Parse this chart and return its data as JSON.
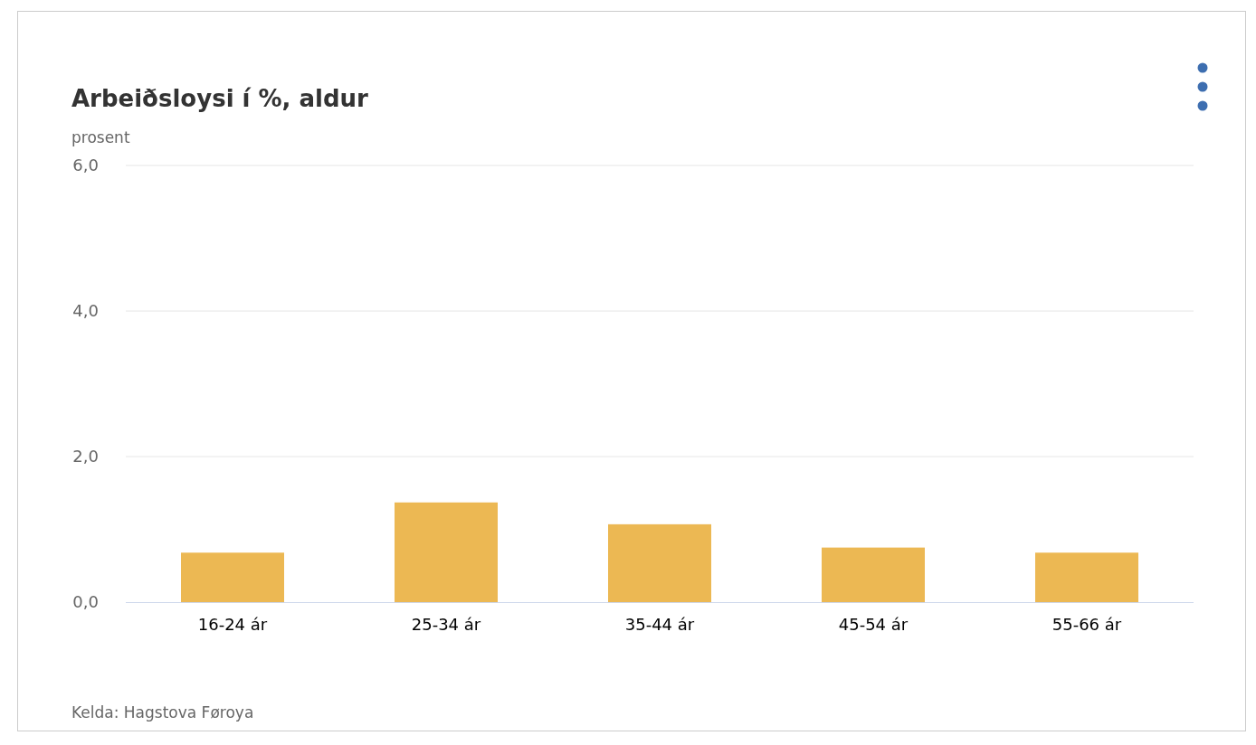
{
  "chart_data": {
    "type": "bar",
    "title": "Arbeiðsloysi í %, aldur",
    "ylabel": "prosent",
    "categories": [
      "16-24 ár",
      "25-34 ár",
      "35-44 ár",
      "45-54 ár",
      "55-66 ár"
    ],
    "values": [
      0.68,
      1.37,
      1.07,
      0.75,
      0.68
    ],
    "color": "#ecb853",
    "ylim": [
      0,
      6
    ],
    "yticks": [
      {
        "value": 0,
        "label": "0,0"
      },
      {
        "value": 2,
        "label": "2,0"
      },
      {
        "value": 4,
        "label": "4,0"
      },
      {
        "value": 6,
        "label": "6,0"
      }
    ],
    "grid": "y",
    "annotations": [
      "Kelda: Hagstova Føroya"
    ]
  }
}
